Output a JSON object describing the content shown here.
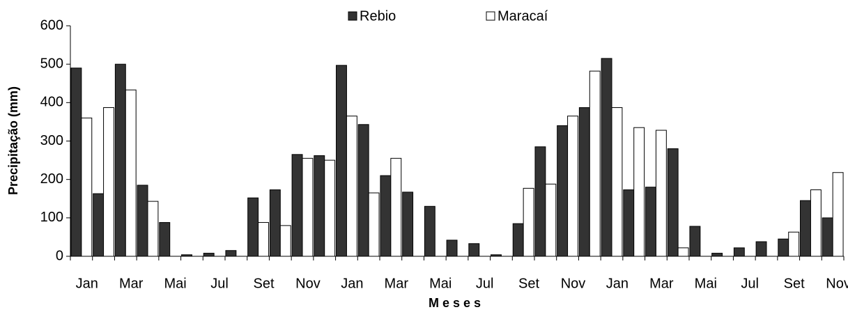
{
  "chart_data": {
    "type": "bar",
    "x_label": "Meses",
    "y_label": "Precipitação (mm)",
    "categories": [
      "Jan",
      null,
      "Mar",
      null,
      "Mai",
      null,
      "Jul",
      null,
      "Set",
      null,
      "Nov",
      null,
      "Jan",
      null,
      "Mar",
      null,
      "Mai",
      null,
      "Jul",
      null,
      "Set",
      null,
      "Nov",
      null,
      "Jan",
      null,
      "Mar",
      null,
      "Mai",
      null,
      "Jul",
      null,
      "Set",
      null,
      "Nov"
    ],
    "series": [
      {
        "name": "Rebio",
        "color": "#333333",
        "values": [
          490,
          163,
          500,
          185,
          88,
          4,
          8,
          15,
          152,
          173,
          265,
          262,
          497,
          343,
          210,
          167,
          130,
          42,
          33,
          4,
          85,
          285,
          340,
          387,
          515,
          173,
          180,
          280,
          78,
          8,
          22,
          38,
          45,
          145,
          100
        ]
      },
      {
        "name": "Maracaí",
        "color": "#ffffff",
        "values": [
          360,
          387,
          433,
          143,
          0,
          0,
          0,
          0,
          88,
          80,
          255,
          250,
          365,
          165,
          255,
          0,
          0,
          0,
          0,
          0,
          177,
          188,
          365,
          482,
          387,
          335,
          328,
          22,
          0,
          0,
          0,
          0,
          63,
          173,
          218
        ]
      }
    ],
    "ylim": [
      0,
      600
    ],
    "yticks": [
      0,
      100,
      200,
      300,
      400,
      500,
      600
    ]
  }
}
